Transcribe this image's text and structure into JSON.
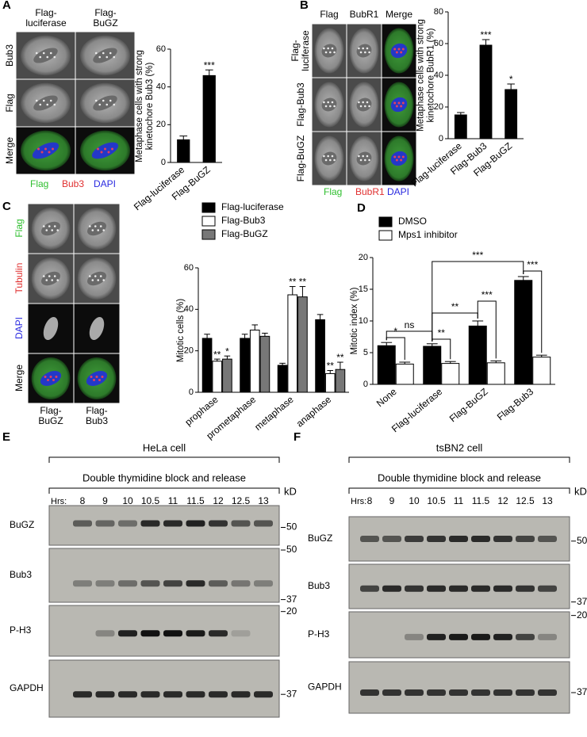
{
  "panels": {
    "A": {
      "letter": "A",
      "columns": [
        "Flag-luciferase",
        "Flag-BuGZ"
      ],
      "rows": [
        "Bub3",
        "Flag",
        "Merge"
      ],
      "legend": [
        "Flag",
        "Bub3",
        "DAPI"
      ]
    },
    "B": {
      "letter": "B",
      "columns": [
        "Flag",
        "BubR1",
        "Merge"
      ],
      "rows": [
        "Flag-luciferase",
        "Flag-Bub3",
        "Flag-BuGZ"
      ],
      "legend": [
        "Flag",
        "BubR1",
        "DAPI"
      ]
    },
    "C": {
      "letter": "C",
      "rows": [
        "Flag",
        "Tubulin",
        "DAPI",
        "Merge"
      ],
      "columns": [
        "Flag-BuGZ",
        "Flag-Bub3"
      ]
    },
    "D": {
      "letter": "D"
    },
    "E": {
      "letter": "E",
      "title": "HeLa cell",
      "treatment": "Double thymidine block and release",
      "time_label": "Hrs:",
      "times": [
        8,
        9,
        10,
        10.5,
        11,
        11.5,
        12,
        12.5,
        13
      ],
      "unit": "kD",
      "blots": [
        {
          "label": "BuGZ",
          "markers": [
            50
          ]
        },
        {
          "label": "Bub3",
          "markers": [
            50,
            37
          ]
        },
        {
          "label": "P-H3",
          "markers": [
            20
          ]
        },
        {
          "label": "GAPDH",
          "markers": [
            37
          ]
        }
      ]
    },
    "F": {
      "letter": "F",
      "title": "tsBN2 cell",
      "treatment": "Double thymidine block and release",
      "time_label": "Hrs:",
      "times": [
        8,
        9,
        10,
        10.5,
        11,
        11.5,
        12,
        12.5,
        13
      ],
      "unit": "kD",
      "blots": [
        {
          "label": "BuGZ",
          "markers": [
            50
          ]
        },
        {
          "label": "Bub3",
          "markers": [
            37
          ]
        },
        {
          "label": "P-H3",
          "markers": [
            20
          ]
        },
        {
          "label": "GAPDH",
          "markers": [
            37
          ]
        }
      ]
    }
  },
  "chart_data": [
    {
      "type": "bar",
      "ylabel": "Metaphase cells with strong kinetochore Bub3 (%)",
      "categories": [
        "Flag-luciferase",
        "Flag-BuGZ"
      ],
      "values": [
        12,
        46
      ],
      "errors": [
        2,
        3
      ],
      "annotations": [
        null,
        "***"
      ],
      "color": "#000000",
      "ylim": [
        0,
        60
      ],
      "yticks": [
        0,
        20,
        40,
        60
      ]
    },
    {
      "type": "bar",
      "ylabel": "Metaphase cells with strong kinetochore BubR1 (%)",
      "categories": [
        "Flag-luciferase",
        "Flag-Bub3",
        "Flag-BuGZ"
      ],
      "values": [
        15,
        59,
        31
      ],
      "errors": [
        1.5,
        3.5,
        3.5
      ],
      "annotations": [
        null,
        "***",
        "*"
      ],
      "color": "#000000",
      "ylim": [
        0,
        80
      ],
      "yticks": [
        0,
        20,
        40,
        60,
        80
      ]
    },
    {
      "type": "bar",
      "ylabel": "Mitotic cells (%)",
      "categories": [
        "prophase",
        "prometaphase",
        "metaphase",
        "anaphase"
      ],
      "series": [
        {
          "name": "Flag-luciferase",
          "color": "#000000",
          "values": [
            26,
            26,
            13,
            35
          ],
          "errors": [
            2,
            2,
            1,
            2.5
          ]
        },
        {
          "name": "Flag-Bub3",
          "color": "#ffffff",
          "values": [
            15,
            30,
            47,
            9
          ],
          "errors": [
            1,
            2.5,
            4,
            1.5
          ],
          "annotations": [
            "**",
            null,
            "**",
            "**"
          ]
        },
        {
          "name": "Flag-BuGZ",
          "color": "#777777",
          "values": [
            16,
            27,
            46,
            11
          ],
          "errors": [
            1.5,
            1.5,
            5,
            3.5
          ],
          "annotations": [
            "*",
            null,
            "**",
            "**"
          ]
        }
      ],
      "ylim": [
        0,
        60
      ],
      "yticks": [
        0,
        20,
        40,
        60
      ]
    },
    {
      "type": "bar",
      "ylabel": "Mitotic index (%)",
      "categories": [
        "None",
        "Flag-luciferase",
        "Flag-BuGZ",
        "Flag-Bub3"
      ],
      "series": [
        {
          "name": "DMSO",
          "color": "#000000",
          "values": [
            6.1,
            6.0,
            9.2,
            16.4
          ],
          "errors": [
            0.5,
            0.4,
            0.8,
            0.6
          ]
        },
        {
          "name": "Mps1 inhibitor",
          "color": "#ffffff",
          "values": [
            3.2,
            3.3,
            3.4,
            4.3
          ],
          "errors": [
            0.3,
            0.3,
            0.3,
            0.3
          ]
        }
      ],
      "significance": [
        "ns",
        "*",
        "**",
        "**",
        "***",
        "***",
        "***"
      ],
      "ylim": [
        0,
        20
      ],
      "yticks": [
        0,
        5,
        10,
        15,
        20
      ]
    }
  ]
}
